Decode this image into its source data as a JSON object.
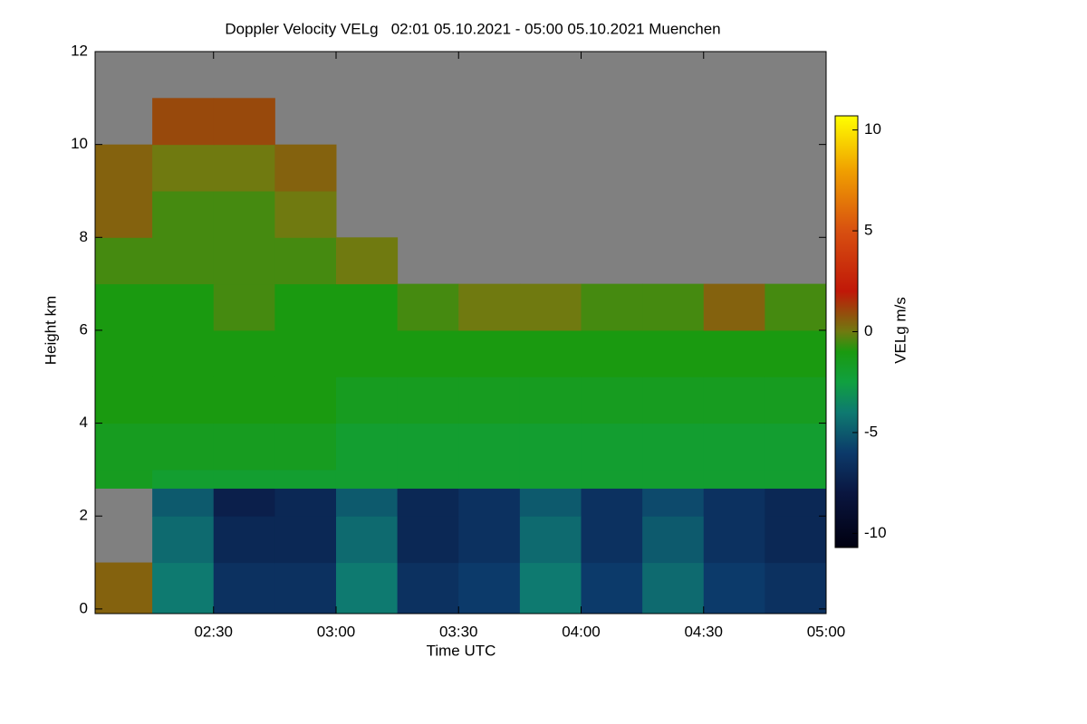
{
  "chart_data": {
    "type": "heatmap",
    "title": "Doppler Velocity VELg   02:01 05.10.2021 - 05:00 05.10.2021 Muenchen",
    "xlabel": "Time UTC",
    "ylabel": "Height km",
    "colorbar_label": "VELg m/s",
    "xlim": [
      2.0167,
      5.0
    ],
    "xticks": [
      {
        "value": 2.5,
        "label": "02:30"
      },
      {
        "value": 3.0,
        "label": "03:00"
      },
      {
        "value": 3.5,
        "label": "03:30"
      },
      {
        "value": 4.0,
        "label": "04:00"
      },
      {
        "value": 4.5,
        "label": "04:30"
      },
      {
        "value": 5.0,
        "label": "05:00"
      }
    ],
    "ylim": [
      -0.1,
      12
    ],
    "yticks": [
      0,
      2,
      4,
      6,
      8,
      10,
      12
    ],
    "x_edges": [
      2.0167,
      2.25,
      2.5,
      2.75,
      3.0,
      3.25,
      3.5,
      3.75,
      4.0,
      4.25,
      4.5,
      4.75,
      5.0
    ],
    "y_edges": [
      -0.1,
      1,
      2,
      2.6,
      3,
      4,
      5,
      6,
      7,
      8,
      9,
      10,
      11,
      12
    ],
    "z": [
      [
        0.5,
        -4,
        -6.5,
        -6.5,
        -4,
        -6.5,
        -6,
        -4,
        -6,
        -4.5,
        -6,
        -6.5
      ],
      [
        null,
        -4.5,
        -7,
        -7,
        -4.5,
        -7,
        -6.5,
        -4.5,
        -6.5,
        -5,
        -6.5,
        -7
      ],
      [
        null,
        -5,
        -7.5,
        -7,
        -5,
        -7,
        -6.5,
        -5,
        -6.5,
        -5.5,
        -6.5,
        -7
      ],
      [
        -1.5,
        -2,
        -2,
        -2,
        -2,
        -2,
        -2,
        -2,
        -2,
        -2,
        -2,
        -2
      ],
      [
        -1.5,
        -1.5,
        -1.5,
        -1.5,
        -2,
        -2,
        -2,
        -2,
        -2,
        -2,
        -2,
        -2
      ],
      [
        -1,
        -1,
        -1,
        -1,
        -1.5,
        -1.5,
        -1.5,
        -1.5,
        -1.5,
        -1.5,
        -1.5,
        -1.5
      ],
      [
        -1,
        -1,
        -1,
        -1,
        -1,
        -1,
        -1,
        -1,
        -1,
        -1,
        -1,
        -1
      ],
      [
        -1,
        -1,
        -0.5,
        -1,
        -1,
        -0.5,
        0,
        0,
        -0.5,
        -0.5,
        0.5,
        -0.5
      ],
      [
        -0.5,
        -0.5,
        -0.5,
        -0.5,
        0,
        null,
        null,
        null,
        null,
        null,
        null,
        null
      ],
      [
        0.5,
        -0.5,
        -0.5,
        0,
        null,
        null,
        null,
        null,
        null,
        null,
        null,
        null
      ],
      [
        0.5,
        0,
        0,
        0.5,
        null,
        null,
        null,
        null,
        null,
        null,
        null,
        null
      ],
      [
        null,
        1,
        1,
        null,
        null,
        null,
        null,
        null,
        null,
        null,
        null,
        null
      ],
      [
        null,
        null,
        null,
        null,
        null,
        null,
        null,
        null,
        null,
        null,
        null,
        null
      ]
    ],
    "missing_color": "#808080",
    "zlim": [
      -10.7,
      10.7
    ],
    "zticks": [
      -10,
      -5,
      0,
      5,
      10
    ],
    "colorscale": [
      [
        -10.7,
        "#000010"
      ],
      [
        -8,
        "#0a1640"
      ],
      [
        -6,
        "#0c3a6a"
      ],
      [
        -4,
        "#0e7a70"
      ],
      [
        -2.5,
        "#10a040"
      ],
      [
        -1,
        "#1a9a10"
      ],
      [
        0,
        "#707a10"
      ],
      [
        2,
        "#c01808"
      ],
      [
        5,
        "#d85010"
      ],
      [
        8,
        "#f0a000"
      ],
      [
        10.7,
        "#ffff00"
      ]
    ]
  }
}
